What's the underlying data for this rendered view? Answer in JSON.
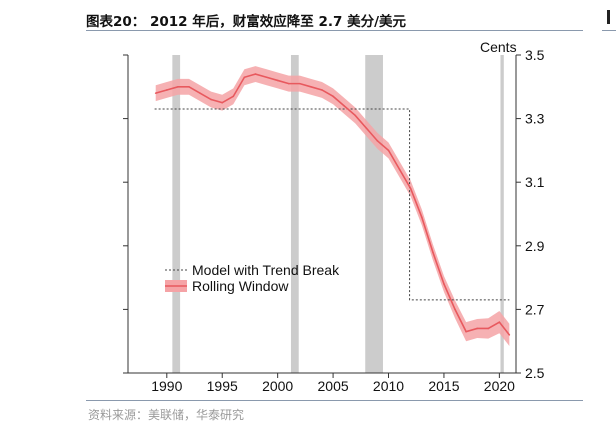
{
  "header": {
    "title": "图表20： 2012 年后，财富效应降至 2.7 美分/美元"
  },
  "footer": {
    "source": "资料来源：美联储，华泰研究"
  },
  "chart_data": {
    "type": "line",
    "title": "图表20： 2012 年后，财富效应降至 2.7 美分/美元",
    "ylabel": "Cents",
    "xlim": [
      1986.5,
      2021.5
    ],
    "ylim": [
      2.5,
      3.5
    ],
    "x_ticks": [
      1990,
      1995,
      2000,
      2005,
      2010,
      2015,
      2020
    ],
    "y_ticks": [
      2.5,
      2.7,
      2.9,
      3.1,
      3.3,
      3.5
    ],
    "legend_position": "center-left",
    "recessions": [
      [
        1990.5,
        1991.2
      ],
      [
        2001.2,
        2001.9
      ],
      [
        2007.9,
        2009.5
      ],
      [
        2020.1,
        2020.4
      ]
    ],
    "series": [
      {
        "name": "Model with Trend Break",
        "style": "dotted",
        "color": "#444444",
        "x": [
          1988.9,
          2011.9,
          2011.9,
          2020.9
        ],
        "y": [
          3.33,
          3.33,
          2.73,
          2.73
        ]
      },
      {
        "name": "Rolling Window",
        "style": "line-with-band",
        "color": "#e8595e",
        "band_color": "#f5a3a6",
        "x": [
          1989,
          1990,
          1991,
          1992,
          1993,
          1994,
          1995,
          1996,
          1997,
          1998,
          1999,
          2000,
          2001,
          2002,
          2003,
          2004,
          2005,
          2006,
          2007,
          2008,
          2009,
          2010,
          2011,
          2012,
          2013,
          2014,
          2015,
          2016,
          2017,
          2018,
          2019,
          2020,
          2020.9
        ],
        "y": [
          3.38,
          3.39,
          3.4,
          3.4,
          3.38,
          3.36,
          3.35,
          3.37,
          3.43,
          3.44,
          3.43,
          3.42,
          3.41,
          3.41,
          3.4,
          3.39,
          3.37,
          3.34,
          3.31,
          3.27,
          3.23,
          3.2,
          3.14,
          3.08,
          2.99,
          2.88,
          2.78,
          2.7,
          2.63,
          2.64,
          2.64,
          2.66,
          2.62
        ],
        "band": [
          0.025,
          0.025,
          0.025,
          0.025,
          0.025,
          0.025,
          0.025,
          0.025,
          0.025,
          0.025,
          0.025,
          0.025,
          0.025,
          0.025,
          0.025,
          0.025,
          0.025,
          0.025,
          0.025,
          0.025,
          0.025,
          0.025,
          0.025,
          0.025,
          0.025,
          0.025,
          0.025,
          0.028,
          0.03,
          0.03,
          0.032,
          0.035,
          0.035
        ]
      }
    ]
  }
}
